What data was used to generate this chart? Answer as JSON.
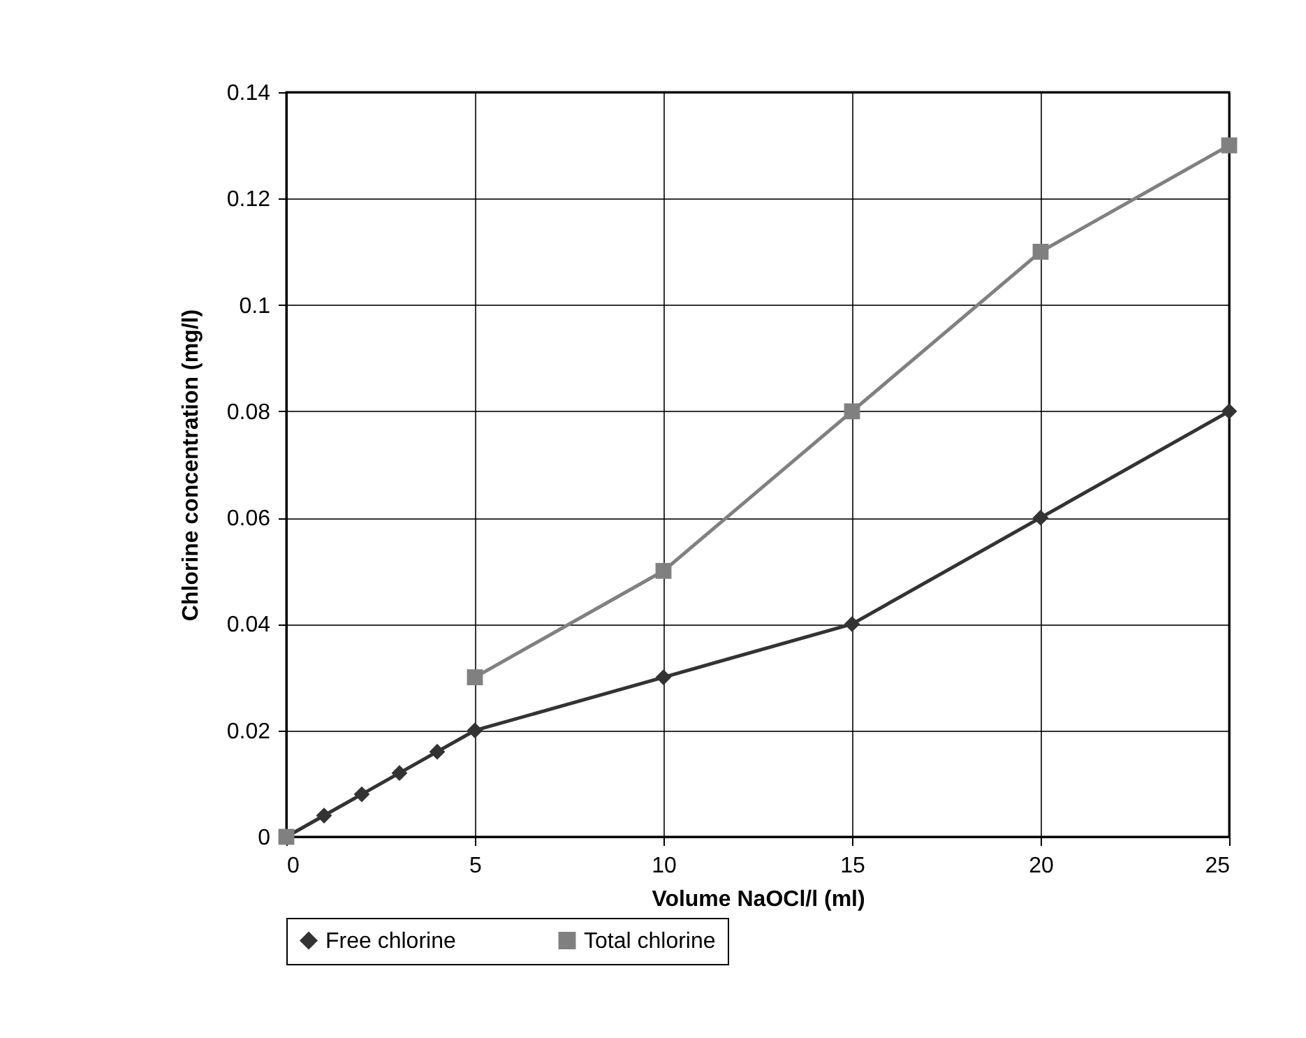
{
  "chart_data": {
    "type": "line",
    "xlabel": "Volume NaOCl/l (ml)",
    "ylabel": "Chlorine concentration (mg/l)",
    "xlim": [
      0,
      25
    ],
    "xticks": [
      0,
      5,
      10,
      15,
      20,
      25
    ],
    "ylim": [
      0,
      0.14
    ],
    "yticks": [
      0,
      0.02,
      0.04,
      0.06,
      0.08,
      0.1,
      0.12,
      0.14
    ],
    "grid": true,
    "legend": "bottom",
    "series": [
      {
        "name": "Free chlorine",
        "color": "#333333",
        "marker": "diamond",
        "x": [
          0,
          1,
          2,
          3,
          4,
          5,
          10,
          15,
          20,
          25
        ],
        "values": [
          0,
          0.004,
          0.008,
          0.012,
          0.016,
          0.02,
          0.03,
          0.04,
          0.06,
          0.08
        ]
      },
      {
        "name": "Total chlorine",
        "color": "#808080",
        "marker": "square",
        "x": [
          0,
          1,
          5,
          10,
          15,
          20,
          25
        ],
        "values": [
          0,
          null,
          0.03,
          0.05,
          0.08,
          0.11,
          0.13
        ]
      }
    ]
  }
}
